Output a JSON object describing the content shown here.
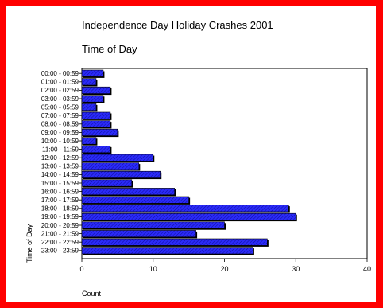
{
  "chart_data": {
    "type": "bar",
    "orientation": "horizontal",
    "title": "Independence Day Holiday Crashes 2001",
    "subtitle": "Time of Day",
    "xlabel": "Count",
    "ylabel": "Time of Day",
    "xlim": [
      0,
      40
    ],
    "xticks": [
      0,
      10,
      20,
      30,
      40
    ],
    "grid": false,
    "legend": "none",
    "bar_color": "#2020f0",
    "categories": [
      "00:00 - 00:59",
      "01:00 - 01:59",
      "02:00 - 02:59",
      "03:00 - 03:59",
      "05:00 - 05:59",
      "07:00 - 07:59",
      "08:00 - 08:59",
      "09:00 - 09:59",
      "10:00 - 10:59",
      "11:00 - 11:59",
      "12:00 - 12:59",
      "13:00 - 13:59",
      "14:00 - 14:59",
      "15:00 - 15:59",
      "16:00 - 16:59",
      "17:00 - 17:59",
      "18:00 - 18:59",
      "19:00 - 19:59",
      "20:00 - 20:59",
      "21:00 - 21:59",
      "22:00 - 22:59",
      "23:00 - 23:59"
    ],
    "values": [
      3,
      2,
      4,
      3,
      2,
      4,
      4,
      5,
      2,
      4,
      10,
      8,
      11,
      7,
      13,
      15,
      29,
      30,
      20,
      16,
      26,
      24
    ]
  }
}
